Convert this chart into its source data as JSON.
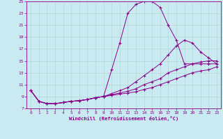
{
  "xlabel": "Windchill (Refroidissement éolien,°C)",
  "xlim": [
    -0.5,
    23.5
  ],
  "ylim": [
    7,
    25
  ],
  "xticks": [
    0,
    1,
    2,
    3,
    4,
    5,
    6,
    7,
    8,
    9,
    10,
    11,
    12,
    13,
    14,
    15,
    16,
    17,
    18,
    19,
    20,
    21,
    22,
    23
  ],
  "yticks": [
    7,
    9,
    11,
    13,
    15,
    17,
    19,
    21,
    23,
    25
  ],
  "bg_color": "#c8eaf0",
  "line_color": "#8b008b",
  "grid_color": "#b0d8d8",
  "curves": [
    {
      "x": [
        0,
        1,
        2,
        3,
        4,
        5,
        6,
        7,
        8,
        9,
        10,
        11,
        12,
        13,
        14,
        15,
        16,
        17,
        18,
        19,
        20,
        21,
        22,
        23
      ],
      "y": [
        10,
        8.2,
        7.8,
        7.8,
        8.0,
        8.2,
        8.3,
        8.5,
        8.8,
        9.0,
        13.5,
        18.0,
        23.0,
        24.5,
        25.0,
        25.0,
        24.0,
        21.0,
        18.5,
        14.5,
        14.5,
        14.5,
        14.5,
        14.5
      ]
    },
    {
      "x": [
        0,
        1,
        2,
        3,
        4,
        5,
        6,
        7,
        8,
        9,
        10,
        11,
        12,
        13,
        14,
        15,
        16,
        17,
        18,
        19,
        20,
        21,
        22,
        23
      ],
      "y": [
        10,
        8.2,
        7.8,
        7.8,
        8.0,
        8.2,
        8.3,
        8.5,
        8.8,
        9.0,
        9.5,
        10.0,
        10.5,
        11.5,
        12.5,
        13.5,
        14.5,
        16.0,
        17.5,
        18.5,
        18.0,
        16.5,
        15.5,
        14.5
      ]
    },
    {
      "x": [
        0,
        1,
        2,
        3,
        4,
        5,
        6,
        7,
        8,
        9,
        10,
        11,
        12,
        13,
        14,
        15,
        16,
        17,
        18,
        19,
        20,
        21,
        22,
        23
      ],
      "y": [
        10,
        8.2,
        7.8,
        7.8,
        8.0,
        8.2,
        8.3,
        8.5,
        8.8,
        9.0,
        9.3,
        9.6,
        9.9,
        10.3,
        11.0,
        11.5,
        12.0,
        13.0,
        13.5,
        14.0,
        14.5,
        14.8,
        15.0,
        15.0
      ]
    },
    {
      "x": [
        0,
        1,
        2,
        3,
        4,
        5,
        6,
        7,
        8,
        9,
        10,
        11,
        12,
        13,
        14,
        15,
        16,
        17,
        18,
        19,
        20,
        21,
        22,
        23
      ],
      "y": [
        10,
        8.2,
        7.8,
        7.8,
        8.0,
        8.2,
        8.3,
        8.5,
        8.8,
        9.0,
        9.2,
        9.4,
        9.6,
        9.8,
        10.2,
        10.5,
        11.0,
        11.5,
        12.0,
        12.5,
        13.0,
        13.3,
        13.5,
        14.0
      ]
    }
  ]
}
